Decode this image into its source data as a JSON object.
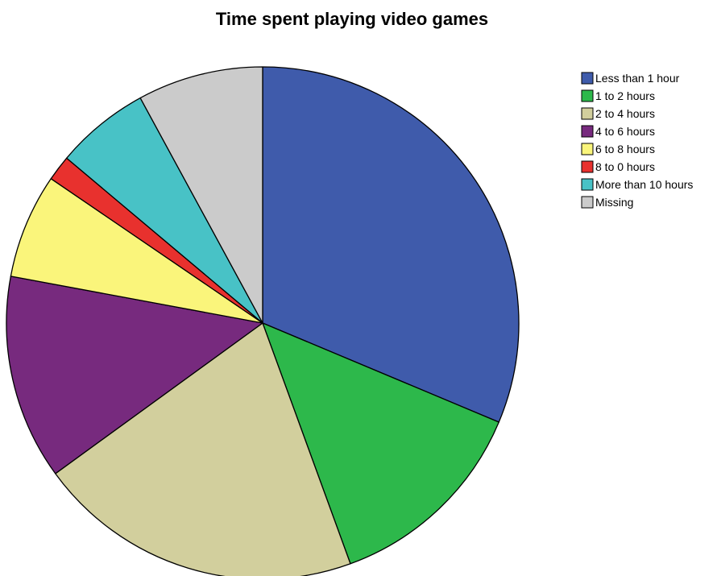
{
  "chart_data": {
    "type": "pie",
    "title": "Time spent playing video games",
    "start_angle": "12 o'clock",
    "direction": "clockwise",
    "legend_position": "top-right",
    "categories": [
      "Less than 1 hour",
      "1 to 2 hours",
      "2 to 4 hours",
      "4 to 6 hours",
      "6 to 8 hours",
      "8 to 0 hours",
      "More than 10 hours",
      "Missing"
    ],
    "values": [
      33.2,
      13.9,
      21.8,
      13.7,
      7.0,
      1.7,
      6.3,
      8.4
    ],
    "colors": [
      "#3f5bab",
      "#2db84b",
      "#d2cf9d",
      "#772a7e",
      "#faf57b",
      "#e8312e",
      "#48c2c6",
      "#cbcbcb"
    ]
  }
}
